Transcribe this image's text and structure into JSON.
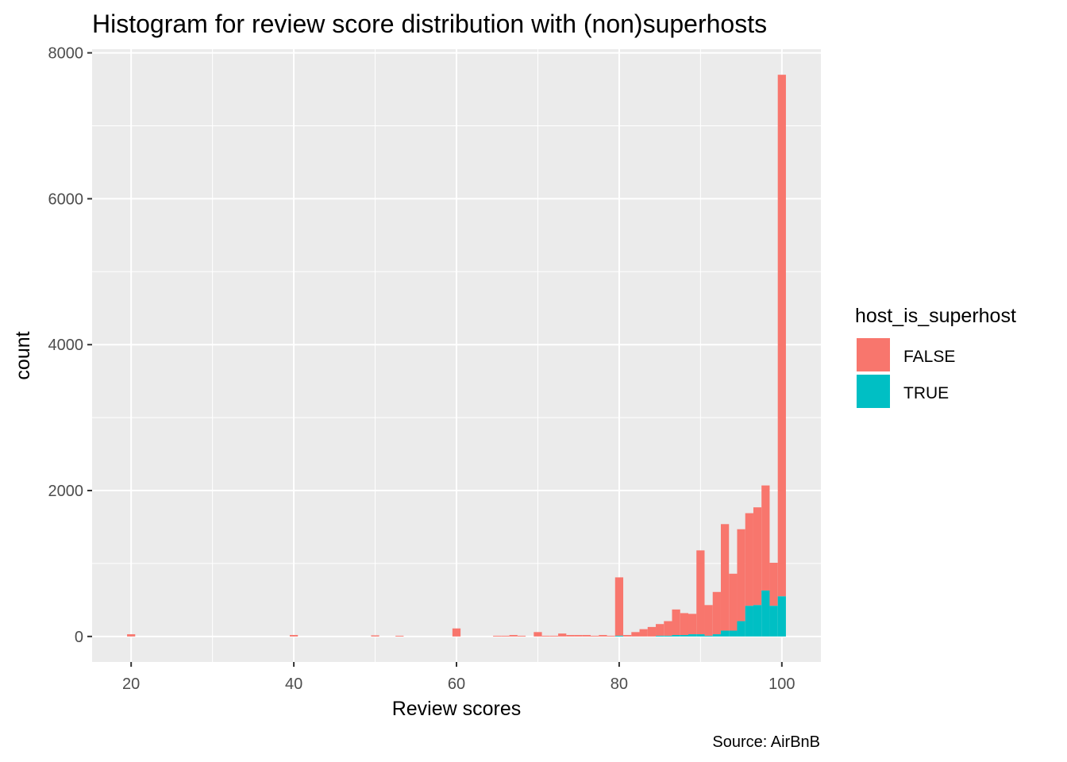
{
  "chart_data": {
    "type": "bar",
    "title": "Histogram for review score distribution with (non)superhosts",
    "xlabel": "Review scores",
    "ylabel": "count",
    "caption": "Source: AirBnB",
    "xlim": [
      15.2,
      104.8
    ],
    "ylim": [
      -350,
      8050
    ],
    "x_ticks": [
      20,
      40,
      60,
      80,
      100
    ],
    "y_ticks": [
      0,
      2000,
      4000,
      6000,
      8000
    ],
    "x_minor_ticks": [
      30,
      50,
      70,
      90
    ],
    "y_minor_ticks": [
      1000,
      3000,
      5000,
      7000
    ],
    "bin_width": 1,
    "legend": {
      "title": "host_is_superhost",
      "position": "right",
      "entries": [
        {
          "label": "FALSE",
          "color": "#F8766D"
        },
        {
          "label": "TRUE",
          "color": "#00BFC4"
        }
      ]
    },
    "grid": true,
    "background": "#EBEBEB",
    "x": [
      20,
      40,
      50,
      53,
      60,
      65,
      66,
      67,
      68,
      70,
      71,
      72,
      73,
      74,
      75,
      76,
      77,
      78,
      79,
      80,
      81,
      82,
      83,
      84,
      85,
      86,
      87,
      88,
      89,
      90,
      91,
      92,
      93,
      94,
      95,
      96,
      97,
      98,
      99,
      100
    ],
    "series": [
      {
        "name": "FALSE",
        "color": "#F8766D",
        "values": [
          30,
          20,
          15,
          10,
          110,
          10,
          10,
          20,
          10,
          60,
          10,
          10,
          40,
          20,
          20,
          20,
          10,
          20,
          10,
          800,
          20,
          60,
          100,
          130,
          160,
          200,
          350,
          300,
          280,
          1150,
          420,
          580,
          1460,
          780,
          1260,
          1270,
          1340,
          1440,
          590,
          7150
        ]
      },
      {
        "name": "TRUE",
        "color": "#00BFC4",
        "values": [
          0,
          0,
          0,
          0,
          0,
          0,
          0,
          0,
          0,
          0,
          0,
          0,
          0,
          0,
          0,
          0,
          0,
          0,
          0,
          10,
          0,
          0,
          0,
          0,
          10,
          10,
          20,
          20,
          30,
          30,
          10,
          30,
          80,
          80,
          210,
          420,
          430,
          630,
          420,
          550
        ]
      }
    ]
  }
}
